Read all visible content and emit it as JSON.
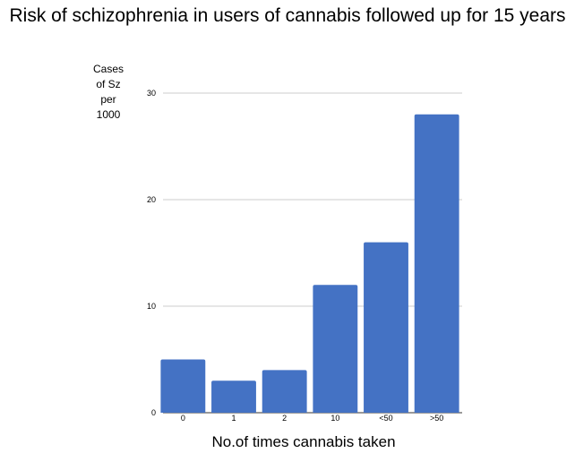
{
  "chart_data": {
    "type": "bar",
    "title": "Risk of schizophrenia in users of cannabis followed up for 15 years",
    "xlabel": "No.of times cannabis taken",
    "ylabel_lines": [
      "Cases",
      "of Sz",
      "per",
      "1000"
    ],
    "categories": [
      "0",
      "1",
      "2",
      "10",
      "<50",
      ">50"
    ],
    "values": [
      5,
      3,
      4,
      12,
      16,
      28
    ],
    "ylim": [
      0,
      30
    ],
    "yticks": [
      0,
      10,
      20,
      30
    ],
    "bar_color": "#4472c4",
    "grid": true,
    "legend": "none"
  }
}
